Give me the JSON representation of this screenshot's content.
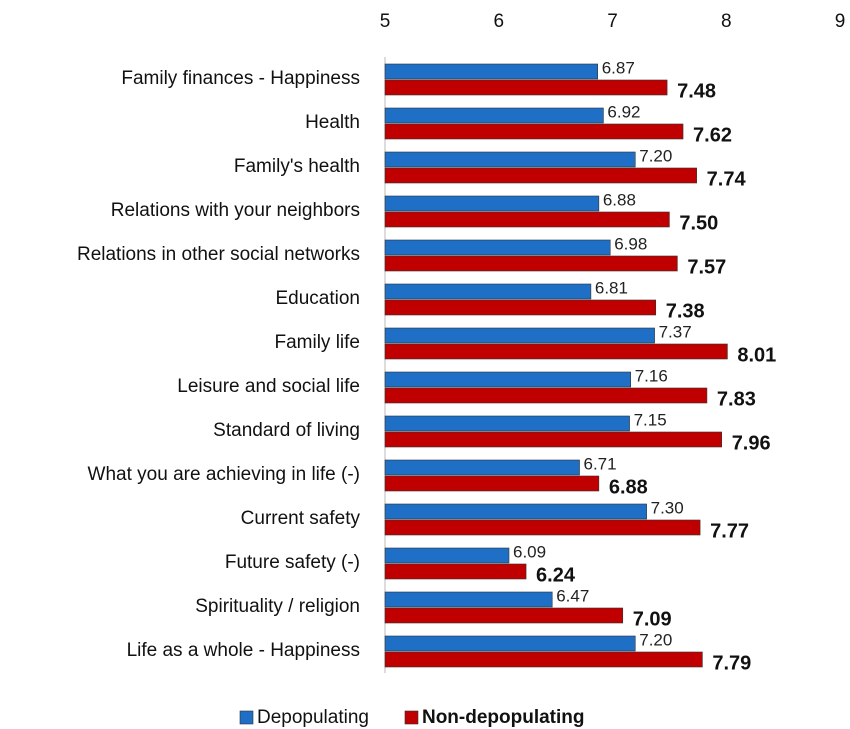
{
  "chart_data": {
    "type": "bar",
    "orientation": "horizontal",
    "categories": [
      "Family finances - Happiness",
      "Health",
      "Family's health",
      "Relations with your neighbors",
      "Relations in other social networks",
      "Education",
      "Family life",
      "Leisure and social life",
      "Standard of living",
      "What you are achieving in life (-)",
      "Current safety",
      "Future safety (-)",
      "Spirituality / religion",
      "Life as a whole - Happiness"
    ],
    "series": [
      {
        "name": "Depopulating",
        "color": "#1f6fc6",
        "values": [
          6.87,
          6.92,
          7.2,
          6.88,
          6.98,
          6.81,
          7.37,
          7.16,
          7.15,
          6.71,
          7.3,
          6.09,
          6.47,
          7.2
        ],
        "value_labels": [
          "6.87",
          "6.92",
          "7.20",
          "6.88",
          "6.98",
          "6.81",
          "7.37",
          "7.16",
          "7.15",
          "6.71",
          "7.30",
          "6.09",
          "6.47",
          "7.20"
        ]
      },
      {
        "name": "Non-depopulating",
        "color": "#c00000",
        "values": [
          7.48,
          7.62,
          7.74,
          7.5,
          7.57,
          7.38,
          8.01,
          7.83,
          7.96,
          6.88,
          7.77,
          6.24,
          7.09,
          7.79
        ],
        "value_labels": [
          "7.48",
          "7.62",
          "7.74",
          "7.50",
          "7.57",
          "7.38",
          "8.01",
          "7.83",
          "7.96",
          "6.88",
          "7.77",
          "6.24",
          "7.09",
          "7.79"
        ]
      }
    ],
    "xlim": [
      5,
      9
    ],
    "xticks": [
      5,
      6,
      7,
      8,
      9
    ],
    "grid": false,
    "legend": "bottom"
  }
}
